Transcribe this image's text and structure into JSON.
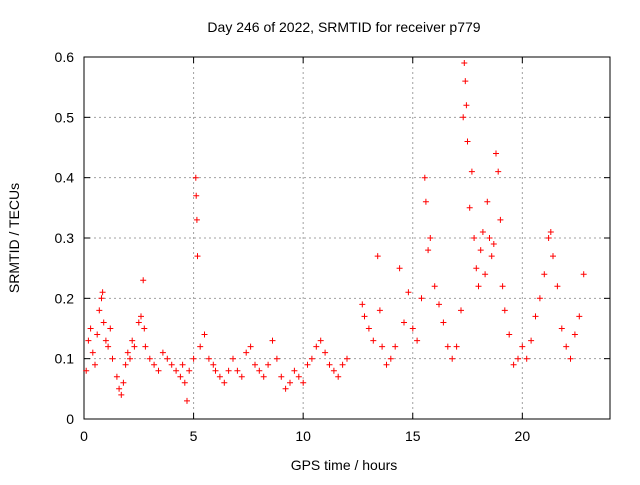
{
  "chart_data": {
    "type": "scatter",
    "title": "Day 246 of 2022, SRMTID for receiver p779",
    "xlabel": "GPS time / hours",
    "ylabel": "SRMTID / TECUs",
    "xlim": [
      0,
      24
    ],
    "ylim": [
      0,
      0.6
    ],
    "x_ticks": [
      0,
      5,
      10,
      15,
      20
    ],
    "x_tick_labels": [
      "0",
      "5",
      "10",
      "15",
      "20"
    ],
    "y_ticks": [
      0,
      0.1,
      0.2,
      0.3,
      0.4,
      0.5,
      0.6
    ],
    "y_tick_labels": [
      "0",
      "0.1",
      "0.2",
      "0.3",
      "0.4",
      "0.5",
      "0.6"
    ],
    "grid": true,
    "marker": "+",
    "series_color": "#ff0000",
    "series": [
      {
        "name": "SRMTID",
        "points": [
          [
            0.1,
            0.08
          ],
          [
            0.2,
            0.13
          ],
          [
            0.3,
            0.15
          ],
          [
            0.4,
            0.11
          ],
          [
            0.5,
            0.09
          ],
          [
            0.6,
            0.14
          ],
          [
            0.7,
            0.18
          ],
          [
            0.8,
            0.2
          ],
          [
            0.85,
            0.21
          ],
          [
            0.9,
            0.16
          ],
          [
            1.0,
            0.13
          ],
          [
            1.1,
            0.12
          ],
          [
            1.2,
            0.15
          ],
          [
            1.3,
            0.1
          ],
          [
            1.5,
            0.07
          ],
          [
            1.6,
            0.05
          ],
          [
            1.7,
            0.04
          ],
          [
            1.8,
            0.06
          ],
          [
            1.9,
            0.09
          ],
          [
            2.0,
            0.11
          ],
          [
            2.1,
            0.1
          ],
          [
            2.2,
            0.13
          ],
          [
            2.3,
            0.12
          ],
          [
            2.5,
            0.16
          ],
          [
            2.6,
            0.17
          ],
          [
            2.7,
            0.23
          ],
          [
            2.75,
            0.15
          ],
          [
            2.8,
            0.12
          ],
          [
            3.0,
            0.1
          ],
          [
            3.2,
            0.09
          ],
          [
            3.4,
            0.08
          ],
          [
            3.6,
            0.11
          ],
          [
            3.8,
            0.1
          ],
          [
            4.0,
            0.09
          ],
          [
            4.2,
            0.08
          ],
          [
            4.4,
            0.07
          ],
          [
            4.5,
            0.09
          ],
          [
            4.6,
            0.06
          ],
          [
            4.7,
            0.03
          ],
          [
            4.8,
            0.08
          ],
          [
            5.0,
            0.1
          ],
          [
            5.1,
            0.4
          ],
          [
            5.12,
            0.37
          ],
          [
            5.15,
            0.33
          ],
          [
            5.18,
            0.27
          ],
          [
            5.3,
            0.12
          ],
          [
            5.5,
            0.14
          ],
          [
            5.7,
            0.1
          ],
          [
            5.9,
            0.09
          ],
          [
            6.0,
            0.08
          ],
          [
            6.2,
            0.07
          ],
          [
            6.4,
            0.06
          ],
          [
            6.6,
            0.08
          ],
          [
            6.8,
            0.1
          ],
          [
            7.0,
            0.08
          ],
          [
            7.2,
            0.07
          ],
          [
            7.4,
            0.11
          ],
          [
            7.6,
            0.12
          ],
          [
            7.8,
            0.09
          ],
          [
            8.0,
            0.08
          ],
          [
            8.2,
            0.07
          ],
          [
            8.4,
            0.09
          ],
          [
            8.6,
            0.13
          ],
          [
            8.8,
            0.1
          ],
          [
            9.0,
            0.07
          ],
          [
            9.2,
            0.05
          ],
          [
            9.4,
            0.06
          ],
          [
            9.6,
            0.08
          ],
          [
            9.8,
            0.07
          ],
          [
            10.0,
            0.06
          ],
          [
            10.2,
            0.09
          ],
          [
            10.4,
            0.1
          ],
          [
            10.6,
            0.12
          ],
          [
            10.8,
            0.13
          ],
          [
            11.0,
            0.11
          ],
          [
            11.2,
            0.09
          ],
          [
            11.4,
            0.08
          ],
          [
            11.6,
            0.07
          ],
          [
            11.8,
            0.09
          ],
          [
            12.0,
            0.1
          ],
          [
            12.7,
            0.19
          ],
          [
            12.8,
            0.17
          ],
          [
            13.0,
            0.15
          ],
          [
            13.2,
            0.13
          ],
          [
            13.4,
            0.27
          ],
          [
            13.5,
            0.18
          ],
          [
            13.6,
            0.12
          ],
          [
            13.8,
            0.09
          ],
          [
            14.0,
            0.1
          ],
          [
            14.2,
            0.12
          ],
          [
            14.4,
            0.25
          ],
          [
            14.6,
            0.16
          ],
          [
            14.8,
            0.21
          ],
          [
            15.0,
            0.15
          ],
          [
            15.2,
            0.13
          ],
          [
            15.4,
            0.2
          ],
          [
            15.55,
            0.4
          ],
          [
            15.6,
            0.36
          ],
          [
            15.7,
            0.28
          ],
          [
            15.8,
            0.3
          ],
          [
            16.0,
            0.22
          ],
          [
            16.2,
            0.19
          ],
          [
            16.4,
            0.16
          ],
          [
            16.6,
            0.12
          ],
          [
            16.8,
            0.1
          ],
          [
            17.0,
            0.12
          ],
          [
            17.2,
            0.18
          ],
          [
            17.3,
            0.5
          ],
          [
            17.35,
            0.59
          ],
          [
            17.4,
            0.56
          ],
          [
            17.45,
            0.52
          ],
          [
            17.5,
            0.46
          ],
          [
            17.6,
            0.35
          ],
          [
            17.7,
            0.41
          ],
          [
            17.8,
            0.3
          ],
          [
            17.9,
            0.25
          ],
          [
            18.0,
            0.22
          ],
          [
            18.1,
            0.28
          ],
          [
            18.2,
            0.31
          ],
          [
            18.3,
            0.24
          ],
          [
            18.4,
            0.36
          ],
          [
            18.5,
            0.3
          ],
          [
            18.6,
            0.27
          ],
          [
            18.7,
            0.29
          ],
          [
            18.8,
            0.44
          ],
          [
            18.9,
            0.41
          ],
          [
            19.0,
            0.33
          ],
          [
            19.1,
            0.22
          ],
          [
            19.2,
            0.18
          ],
          [
            19.4,
            0.14
          ],
          [
            19.6,
            0.09
          ],
          [
            19.8,
            0.1
          ],
          [
            20.0,
            0.12
          ],
          [
            20.2,
            0.1
          ],
          [
            20.4,
            0.13
          ],
          [
            20.6,
            0.17
          ],
          [
            20.8,
            0.2
          ],
          [
            21.0,
            0.24
          ],
          [
            21.2,
            0.3
          ],
          [
            21.3,
            0.31
          ],
          [
            21.4,
            0.27
          ],
          [
            21.6,
            0.22
          ],
          [
            21.8,
            0.15
          ],
          [
            22.0,
            0.12
          ],
          [
            22.2,
            0.1
          ],
          [
            22.4,
            0.14
          ],
          [
            22.6,
            0.17
          ],
          [
            22.8,
            0.24
          ]
        ]
      }
    ]
  }
}
